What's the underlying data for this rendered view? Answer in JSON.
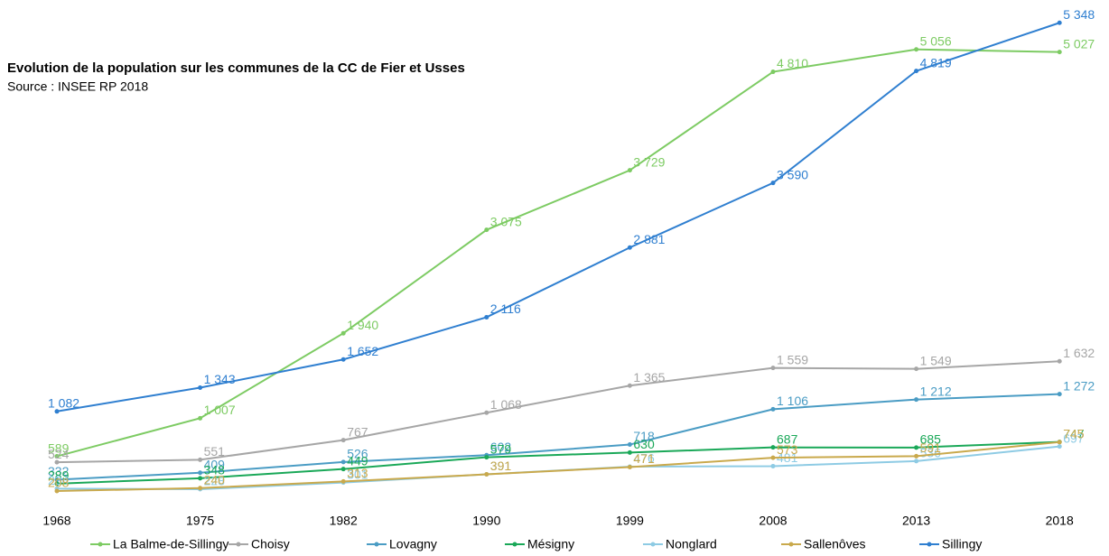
{
  "chart_data": {
    "type": "line",
    "title": "Evolution de la population sur les communes de la CC de Fier et Usses",
    "subtitle": "Source : INSEE RP 2018",
    "categories": [
      "1968",
      "1975",
      "1982",
      "1990",
      "1999",
      "2008",
      "2013",
      "2018"
    ],
    "ylim": [
      0,
      5400
    ],
    "series": [
      {
        "name": "La Balme-de-Sillingy",
        "color": "#7dcb63",
        "values": [
          589,
          1007,
          1940,
          3075,
          3729,
          4810,
          5056,
          5027
        ],
        "value_labels": [
          "589",
          "1 007",
          "1 940",
          "3 075",
          "3 729",
          "4 810",
          "5 056",
          "5 027"
        ]
      },
      {
        "name": "Choisy",
        "color": "#a6a6a6",
        "values": [
          524,
          551,
          767,
          1068,
          1365,
          1559,
          1549,
          1632
        ],
        "value_labels": [
          "524",
          "551",
          "767",
          "1 068",
          "1 365",
          "1 559",
          "1 549",
          "1 632"
        ]
      },
      {
        "name": "Lovagny",
        "color": "#4a9cc4",
        "values": [
          332,
          409,
          526,
          602,
          718,
          1106,
          1212,
          1272
        ],
        "value_labels": [
          "332",
          "409",
          "526",
          "602",
          "718",
          "1 106",
          "1 212",
          "1 272"
        ]
      },
      {
        "name": "Mésigny",
        "color": "#1aa858",
        "values": [
          289,
          348,
          449,
          579,
          630,
          687,
          685,
          747
        ],
        "value_labels": [
          "289",
          "348",
          "449",
          "579",
          "630",
          "687",
          "685",
          "747"
        ]
      },
      {
        "name": "Nonglard",
        "color": "#8ecbe4",
        "values": [
          234,
          228,
          301,
          391,
          476,
          481,
          536,
          697
        ],
        "value_labels": [
          "234",
          "228",
          "301",
          "391",
          "476",
          "481",
          "536",
          "697"
        ]
      },
      {
        "name": "Sallenôves",
        "color": "#c9a94c",
        "values": [
          208,
          240,
          313,
          391,
          471,
          573,
          591,
          745
        ],
        "value_labels": [
          "208",
          "240",
          "313",
          "391",
          "471",
          "573",
          "591",
          "745"
        ]
      },
      {
        "name": "Sillingy",
        "color": "#2f7fd0",
        "values": [
          1082,
          1343,
          1652,
          2116,
          2881,
          3590,
          4819,
          5348
        ],
        "value_labels": [
          "1 082",
          "1 343",
          "1 652",
          "2 116",
          "2 881",
          "3 590",
          "4 819",
          "5 348"
        ]
      }
    ]
  }
}
